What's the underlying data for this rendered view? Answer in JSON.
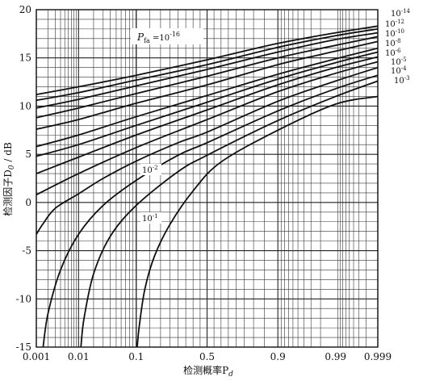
{
  "chart_data": {
    "type": "line",
    "xlabel": "检测概率P",
    "xlabel_sub": "d",
    "ylabel": "检测因子D",
    "ylabel_sub": "0",
    "ylabel_unit": " / dB",
    "x_scale": "normal-probability",
    "xlim": [
      0.001,
      0.999
    ],
    "ylim": [
      -15,
      20
    ],
    "x_ticks": [
      {
        "value": 0.001,
        "label": "0.001"
      },
      {
        "value": 0.01,
        "label": "0.01"
      },
      {
        "value": 0.1,
        "label": "0.1"
      },
      {
        "value": 0.5,
        "label": "0.5"
      },
      {
        "value": 0.9,
        "label": "0.9"
      },
      {
        "value": 0.99,
        "label": "0.99"
      },
      {
        "value": 0.999,
        "label": "0.999"
      }
    ],
    "y_ticks": [
      {
        "value": -15,
        "label": "-15"
      },
      {
        "value": -10,
        "label": "-10"
      },
      {
        "value": -5,
        "label": "-5"
      },
      {
        "value": 0,
        "label": "0"
      },
      {
        "value": 5,
        "label": "5"
      },
      {
        "value": 10,
        "label": "10"
      },
      {
        "value": 15,
        "label": "15"
      },
      {
        "value": 20,
        "label": "20"
      }
    ],
    "grid": true,
    "series": [
      {
        "name": "10^-16",
        "pfa_exp": -16,
        "points": [
          [
            0.001,
            11.2
          ],
          [
            0.01,
            12.0
          ],
          [
            0.1,
            13.2
          ],
          [
            0.5,
            14.8
          ],
          [
            0.9,
            16.5
          ],
          [
            0.99,
            17.6
          ],
          [
            0.999,
            18.3
          ]
        ]
      },
      {
        "name": "10^-14",
        "pfa_exp": -14,
        "points": [
          [
            0.001,
            10.6
          ],
          [
            0.01,
            11.4
          ],
          [
            0.1,
            12.7
          ],
          [
            0.5,
            14.3
          ],
          [
            0.9,
            16.1
          ],
          [
            0.99,
            17.3
          ],
          [
            0.999,
            18.0
          ]
        ]
      },
      {
        "name": "10^-12",
        "pfa_exp": -12,
        "points": [
          [
            0.001,
            9.8
          ],
          [
            0.01,
            10.7
          ],
          [
            0.1,
            12.1
          ],
          [
            0.5,
            13.8
          ],
          [
            0.9,
            15.6
          ],
          [
            0.99,
            16.9
          ],
          [
            0.999,
            17.6
          ]
        ]
      },
      {
        "name": "10^-10",
        "pfa_exp": -10,
        "points": [
          [
            0.001,
            8.8
          ],
          [
            0.01,
            9.8
          ],
          [
            0.1,
            11.3
          ],
          [
            0.5,
            13.1
          ],
          [
            0.9,
            15.0
          ],
          [
            0.99,
            16.3
          ],
          [
            0.999,
            17.2
          ]
        ]
      },
      {
        "name": "10^-8",
        "pfa_exp": -8,
        "points": [
          [
            0.001,
            7.6
          ],
          [
            0.01,
            8.6
          ],
          [
            0.1,
            10.3
          ],
          [
            0.5,
            12.2
          ],
          [
            0.9,
            14.3
          ],
          [
            0.99,
            15.7
          ],
          [
            0.999,
            16.7
          ]
        ]
      },
      {
        "name": "10^-6",
        "pfa_exp": -6,
        "points": [
          [
            0.001,
            5.8
          ],
          [
            0.01,
            7.0
          ],
          [
            0.1,
            8.9
          ],
          [
            0.5,
            11.1
          ],
          [
            0.9,
            13.3
          ],
          [
            0.99,
            14.9
          ],
          [
            0.999,
            16.0
          ]
        ]
      },
      {
        "name": "10^-5",
        "pfa_exp": -5,
        "points": [
          [
            0.001,
            4.8
          ],
          [
            0.01,
            6.0
          ],
          [
            0.1,
            8.0
          ],
          [
            0.5,
            10.4
          ],
          [
            0.9,
            12.8
          ],
          [
            0.99,
            14.5
          ],
          [
            0.999,
            15.6
          ]
        ]
      },
      {
        "name": "10^-4",
        "pfa_exp": -4,
        "points": [
          [
            0.001,
            3.0
          ],
          [
            0.01,
            4.7
          ],
          [
            0.1,
            7.0
          ],
          [
            0.5,
            9.6
          ],
          [
            0.9,
            12.2
          ],
          [
            0.99,
            14.0
          ],
          [
            0.999,
            15.1
          ]
        ]
      },
      {
        "name": "10^-3",
        "pfa_exp": -3,
        "points": [
          [
            0.001,
            0.8
          ],
          [
            0.01,
            3.0
          ],
          [
            0.1,
            5.7
          ],
          [
            0.5,
            8.6
          ],
          [
            0.9,
            11.5
          ],
          [
            0.99,
            13.4
          ],
          [
            0.999,
            14.6
          ]
        ]
      },
      {
        "name": "10^-2",
        "pfa_exp": -2,
        "points": [
          [
            0.001,
            -3.3
          ],
          [
            0.0015,
            -2.2
          ],
          [
            0.003,
            -0.6
          ],
          [
            0.01,
            0.9
          ],
          [
            0.03,
            2.5
          ],
          [
            0.1,
            4.3
          ],
          [
            0.3,
            6.2
          ],
          [
            0.5,
            7.3
          ],
          [
            0.9,
            10.5
          ],
          [
            0.99,
            12.6
          ],
          [
            0.999,
            14.0
          ]
        ]
      },
      {
        "name": "",
        "pfa_exp": -1.5,
        "points": [
          [
            0.0015,
            -15.0
          ],
          [
            0.002,
            -11.5
          ],
          [
            0.004,
            -7.0
          ],
          [
            0.01,
            -3.3
          ],
          [
            0.03,
            -0.3
          ],
          [
            0.1,
            2.3
          ],
          [
            0.3,
            4.9
          ],
          [
            0.5,
            6.2
          ],
          [
            0.9,
            9.5
          ],
          [
            0.99,
            11.8
          ],
          [
            0.999,
            13.2
          ]
        ]
      },
      {
        "name": "",
        "pfa_exp": -1.2,
        "points": [
          [
            0.0112,
            -15.0
          ],
          [
            0.013,
            -12.0
          ],
          [
            0.02,
            -7.4
          ],
          [
            0.04,
            -3.5
          ],
          [
            0.1,
            -0.3
          ],
          [
            0.3,
            3.2
          ],
          [
            0.5,
            4.9
          ],
          [
            0.9,
            8.5
          ],
          [
            0.99,
            11.0
          ],
          [
            0.999,
            12.6
          ]
        ]
      },
      {
        "name": "10^-1",
        "pfa_exp": -1,
        "points": [
          [
            0.103,
            -15.0
          ],
          [
            0.11,
            -12.8
          ],
          [
            0.13,
            -9.0
          ],
          [
            0.17,
            -5.6
          ],
          [
            0.25,
            -2.3
          ],
          [
            0.4,
            1.2
          ],
          [
            0.6,
            4.2
          ],
          [
            0.9,
            7.5
          ],
          [
            0.99,
            10.2
          ],
          [
            0.999,
            11.0
          ]
        ]
      }
    ],
    "annotations": {
      "pfa_label_main": "P",
      "pfa_label_sub": "fa",
      "pfa_label_value": " =10",
      "pfa_label_exp": "-16",
      "curve_labels": [
        {
          "base": "10",
          "exp": "-14"
        },
        {
          "base": "10",
          "exp": "-12"
        },
        {
          "base": "10",
          "exp": "-10"
        },
        {
          "base": "10",
          "exp": "-8"
        },
        {
          "base": "10",
          "exp": "-6"
        },
        {
          "base": "10",
          "exp": "-5"
        },
        {
          "base": "10",
          "exp": "-4"
        },
        {
          "base": "10",
          "exp": "-3"
        },
        {
          "base": "10",
          "exp": "-2"
        },
        {
          "base": "10",
          "exp": "-1"
        }
      ]
    }
  }
}
